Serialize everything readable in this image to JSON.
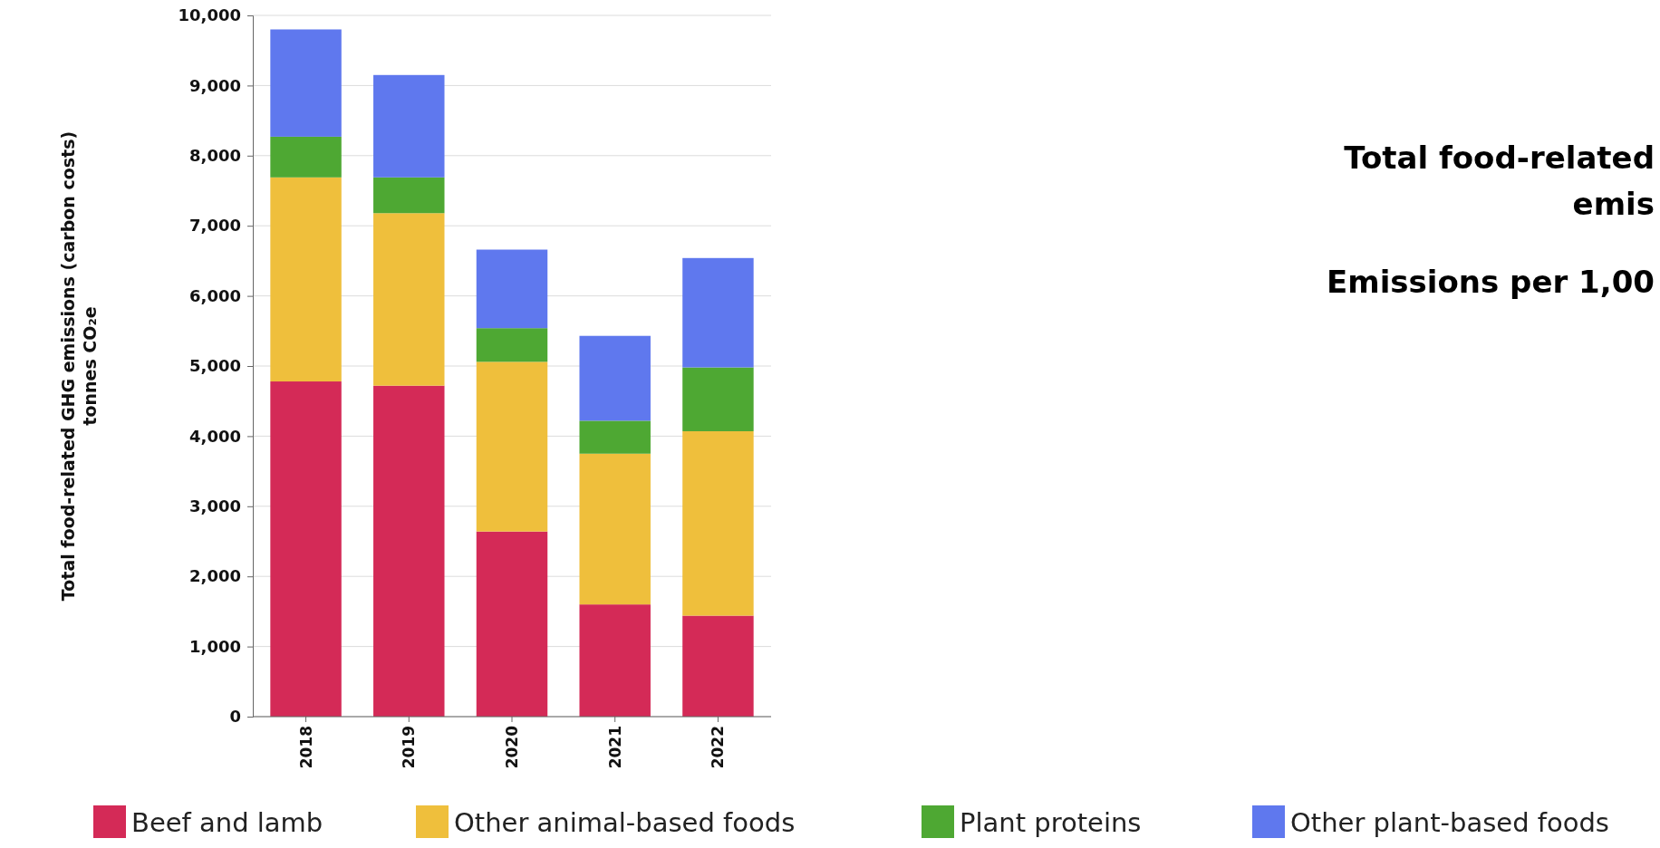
{
  "chart_data": {
    "type": "bar",
    "stacked": true,
    "categories": [
      "2018",
      "2019",
      "2020",
      "2021",
      "2022"
    ],
    "ylabel": "Total food-related GHG emissions (carbon costs)\ntonnes CO₂e",
    "series": [
      {
        "name": "Beef and lamb",
        "color": "#d42a57",
        "values": [
          4780,
          4720,
          2640,
          1600,
          1440
        ]
      },
      {
        "name": "Other animal-based foods",
        "color": "#efbf3c",
        "values": [
          2910,
          2460,
          2420,
          2150,
          2630
        ]
      },
      {
        "name": "Plant proteins",
        "color": "#4ea833",
        "values": [
          580,
          510,
          480,
          470,
          910
        ]
      },
      {
        "name": "Other plant-based foods",
        "color": "#5f78ee",
        "values": [
          1530,
          1460,
          1120,
          1210,
          1560
        ]
      }
    ],
    "ylim": [
      0,
      10000
    ],
    "yticks": [
      {
        "value": 0,
        "label": "0"
      },
      {
        "value": 1000,
        "label": "1,000"
      },
      {
        "value": 2000,
        "label": "2,000"
      },
      {
        "value": 3000,
        "label": "3,000"
      },
      {
        "value": 4000,
        "label": "4,000"
      },
      {
        "value": 5000,
        "label": "5,000"
      },
      {
        "value": 6000,
        "label": "6,000"
      },
      {
        "value": 7000,
        "label": "7,000"
      },
      {
        "value": 8000,
        "label": "8,000"
      },
      {
        "value": 9000,
        "label": "9,000"
      },
      {
        "value": 10000,
        "label": "10,000"
      }
    ],
    "grid": "y",
    "legend": "bottom",
    "annotations": [
      "Total food-related",
      "emis",
      "Emissions per 1,00"
    ]
  }
}
